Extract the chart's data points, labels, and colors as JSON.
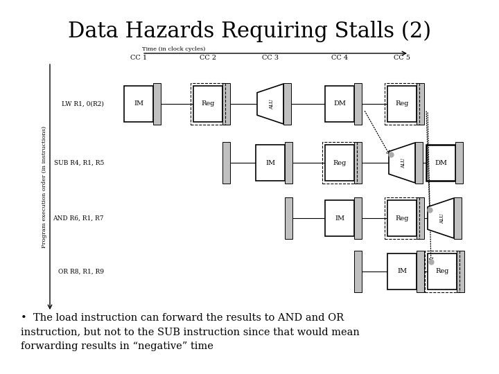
{
  "title": "Data Hazards Requiring Stalls (2)",
  "title_fontsize": 22,
  "bg_color": "#ffffff",
  "time_label": "Time (in clock cycles)",
  "prog_label": "Program execution order (in instructions)",
  "cc_labels": [
    "CC 1",
    "CC 2",
    "CC 3",
    "CC 4",
    "CC 5"
  ],
  "bullet_text": "The load instruction can forward the results to AND and OR\ninstruction, but not to the SUB instruction since that would mean\nforwarding results in “negative” time",
  "box_color": "#c0c0c0",
  "white": "#ffffff",
  "black": "#000000"
}
